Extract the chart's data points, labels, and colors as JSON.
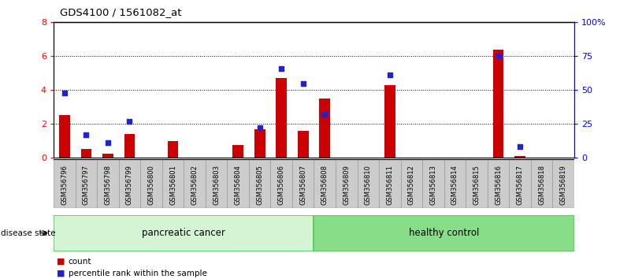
{
  "title": "GDS4100 / 1561082_at",
  "categories": [
    "GSM356796",
    "GSM356797",
    "GSM356798",
    "GSM356799",
    "GSM356800",
    "GSM356801",
    "GSM356802",
    "GSM356803",
    "GSM356804",
    "GSM356805",
    "GSM356806",
    "GSM356807",
    "GSM356808",
    "GSM356809",
    "GSM356810",
    "GSM356811",
    "GSM356812",
    "GSM356813",
    "GSM356814",
    "GSM356815",
    "GSM356816",
    "GSM356817",
    "GSM356818",
    "GSM356819"
  ],
  "red_values": [
    2.5,
    0.5,
    0.25,
    1.4,
    0.0,
    1.0,
    0.0,
    0.0,
    0.75,
    1.7,
    4.7,
    1.6,
    3.5,
    0.0,
    0.0,
    4.3,
    0.0,
    0.0,
    0.0,
    0.0,
    6.4,
    0.1,
    0.0,
    0.0
  ],
  "blue_values": [
    48,
    17,
    11,
    27,
    0,
    0,
    0,
    0,
    0,
    22,
    66,
    55,
    32,
    0,
    0,
    61,
    0,
    0,
    0,
    0,
    75,
    8,
    0,
    0
  ],
  "ylim_left": [
    0,
    8
  ],
  "ylim_right": [
    0,
    100
  ],
  "yticks_left": [
    0,
    2,
    4,
    6,
    8
  ],
  "yticks_right": [
    0,
    25,
    50,
    75,
    100
  ],
  "ytick_labels_right": [
    "0",
    "25",
    "50",
    "75",
    "100%"
  ],
  "group1_label": "pancreatic cancer",
  "group2_label": "healthy control",
  "group1_indices": [
    0,
    11
  ],
  "group2_indices": [
    12,
    23
  ],
  "disease_state_label": "disease state",
  "legend_red": "count",
  "legend_blue": "percentile rank within the sample",
  "group1_color_light": "#d4f5d4",
  "group1_color_dark": "#55cc55",
  "group2_color_light": "#88dd88",
  "group2_color_dark": "#55cc55",
  "separator_color": "#33aa33",
  "red_color": "#cc0000",
  "blue_color": "#2222cc",
  "bar_width": 0.5,
  "tick_bg_color": "#cccccc",
  "tick_border_color": "#999999"
}
